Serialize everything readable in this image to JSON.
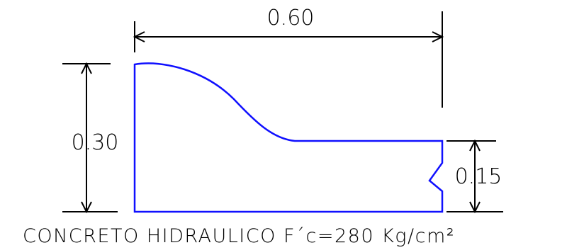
{
  "drawing": {
    "dimensions": {
      "width": "0.60",
      "height_total": "0.30",
      "height_right": "0.15"
    },
    "caption": "CONCRETO  HIDRAULICO F´c=280 Kg/cm²"
  },
  "colors": {
    "profile": "#1010ff",
    "dimension": "#000000",
    "background": "#ffffff"
  }
}
